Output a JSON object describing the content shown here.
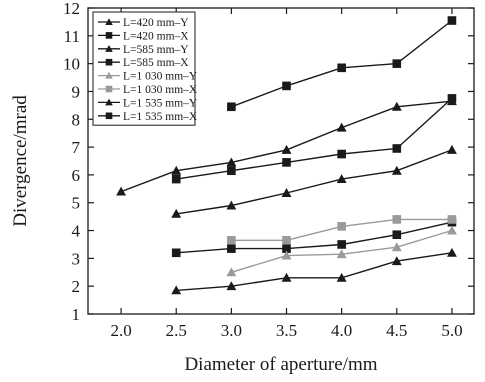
{
  "chart_data": {
    "type": "line",
    "xlabel": "Diameter of aperture/mm",
    "ylabel": "Divergence/mrad",
    "xlim": [
      1.7,
      5.2
    ],
    "ylim": [
      1,
      12
    ],
    "xticks": [
      "2.0",
      "2.5",
      "3.0",
      "3.5",
      "4.0",
      "4.5",
      "5.0"
    ],
    "xtick_values": [
      2.0,
      2.5,
      3.0,
      3.5,
      4.0,
      4.5,
      5.0
    ],
    "yticks": [
      "1",
      "2",
      "3",
      "4",
      "5",
      "6",
      "7",
      "8",
      "9",
      "10",
      "11",
      "12"
    ],
    "ytick_values": [
      1,
      2,
      3,
      4,
      5,
      6,
      7,
      8,
      9,
      10,
      11,
      12
    ],
    "grid": false,
    "legend_position": "top-left",
    "series": [
      {
        "name": "L=420 mm–Y",
        "marker": "triangle",
        "color": "#1a1a1a",
        "x": [
          2.5,
          3.0,
          3.5,
          4.0,
          4.5,
          5.0
        ],
        "y": [
          1.85,
          2.0,
          2.3,
          2.3,
          2.9,
          3.2
        ]
      },
      {
        "name": "L=420 mm–X",
        "marker": "square",
        "color": "#1a1a1a",
        "x": [
          2.5,
          3.0,
          3.5,
          4.0,
          4.5,
          5.0
        ],
        "y": [
          3.2,
          3.35,
          3.35,
          3.5,
          3.85,
          4.3
        ]
      },
      {
        "name": "L=585 mm–Y",
        "marker": "triangle",
        "color": "#1a1a1a",
        "x": [
          2.5,
          3.0,
          3.5,
          4.0,
          4.5,
          5.0
        ],
        "y": [
          4.6,
          4.9,
          5.35,
          5.85,
          6.15,
          6.9
        ]
      },
      {
        "name": "L=585 mm–X",
        "marker": "square",
        "color": "#1a1a1a",
        "x": [
          2.5,
          3.0,
          3.5,
          4.0,
          4.5,
          5.0
        ],
        "y": [
          5.85,
          6.15,
          6.45,
          6.75,
          6.95,
          8.75
        ]
      },
      {
        "name": "L=1 030 mm–Y",
        "marker": "triangle",
        "color": "#9a9a9a",
        "x": [
          3.0,
          3.5,
          4.0,
          4.5,
          5.0
        ],
        "y": [
          2.5,
          3.1,
          3.15,
          3.4,
          4.0
        ]
      },
      {
        "name": "L=1 030 mm–X",
        "marker": "square",
        "color": "#9a9a9a",
        "x": [
          3.0,
          3.5,
          4.0,
          4.5,
          5.0
        ],
        "y": [
          3.65,
          3.65,
          4.15,
          4.4,
          4.4
        ]
      },
      {
        "name": "L=1 535 mm–Y",
        "marker": "triangle",
        "color": "#1a1a1a",
        "x": [
          2.0,
          2.5,
          3.0,
          3.5,
          4.0,
          4.5,
          5.0
        ],
        "y": [
          5.4,
          6.15,
          6.45,
          6.9,
          7.7,
          8.45,
          8.65
        ]
      },
      {
        "name": "L=1 535 mm–X",
        "marker": "square",
        "color": "#1a1a1a",
        "x": [
          3.0,
          3.5,
          4.0,
          4.5,
          5.0
        ],
        "y": [
          8.45,
          9.2,
          9.85,
          10.0,
          11.55
        ]
      }
    ]
  }
}
